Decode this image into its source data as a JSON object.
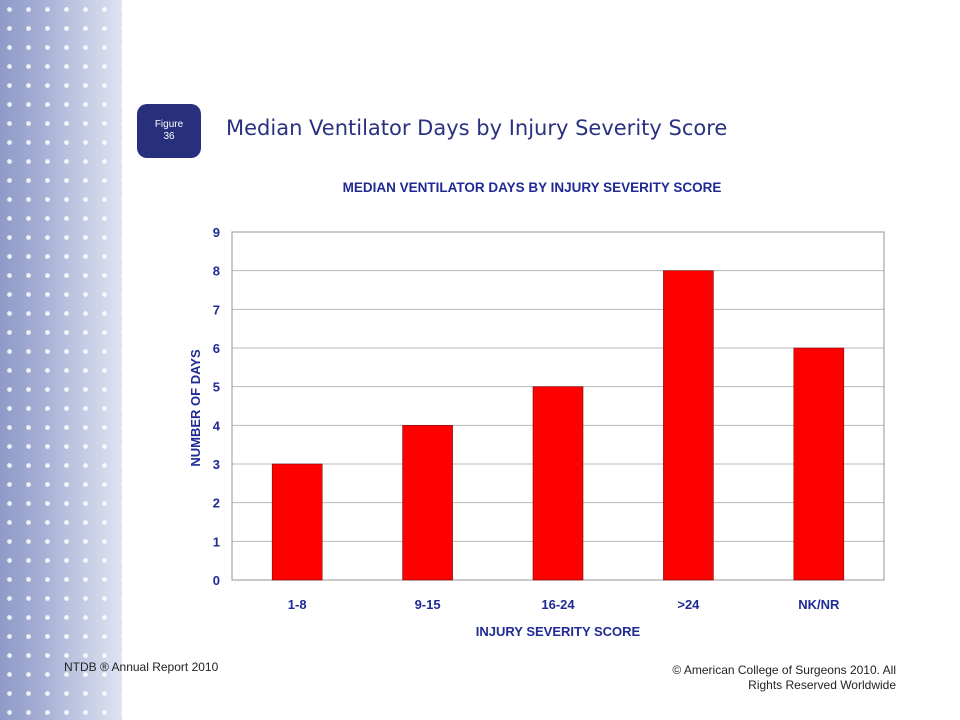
{
  "slide": {
    "figure_badge_line1": "Figure",
    "figure_badge_line2": "36",
    "title": "Median Ventilator Days by Injury Severity Score",
    "footer_left": "NTDB ® Annual Report 2010",
    "footer_right_line1": "© American College of Surgeons 2010.  All",
    "footer_right_line2": "Rights Reserved Worldwide"
  },
  "colors": {
    "bar": "#ff0000",
    "text": "#1f2a94",
    "badge": "#28307d"
  },
  "chart_data": {
    "type": "bar",
    "title": "MEDIAN VENTILATOR DAYS BY INJURY SEVERITY SCORE",
    "xlabel": "INJURY SEVERITY SCORE",
    "ylabel": "NUMBER OF DAYS",
    "categories": [
      "1-8",
      "9-15",
      "16-24",
      ">24",
      "NK/NR"
    ],
    "values": [
      3,
      4,
      5,
      8,
      6
    ],
    "ylim": [
      0,
      9
    ],
    "yticks": [
      0,
      1,
      2,
      3,
      4,
      5,
      6,
      7,
      8,
      9
    ],
    "grid": true,
    "legend": "none"
  }
}
